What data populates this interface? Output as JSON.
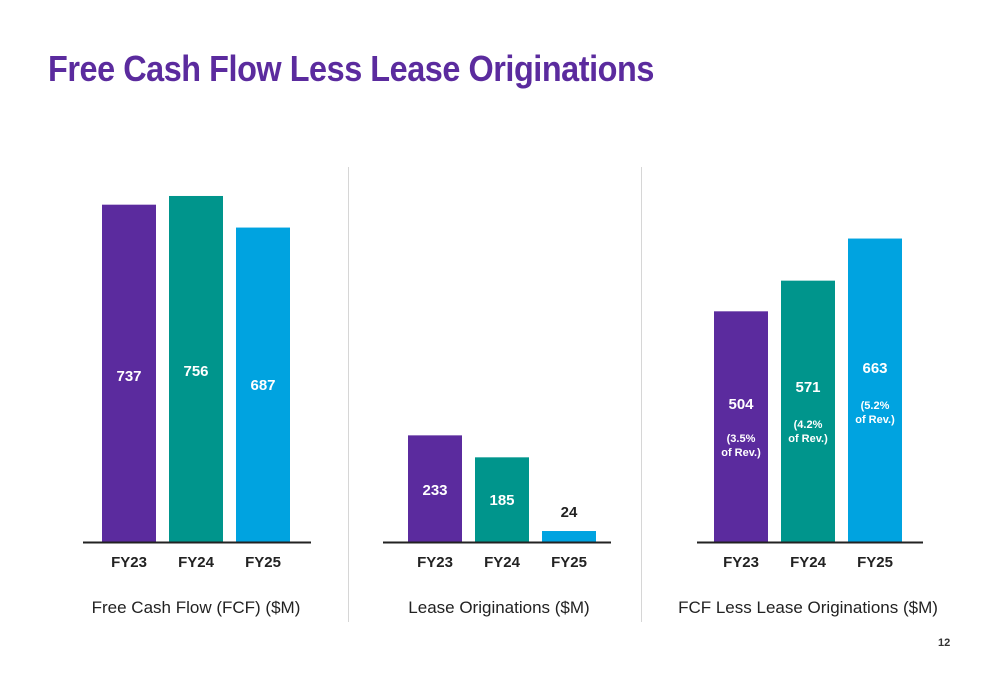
{
  "page": {
    "title": "Free Cash Flow Less Lease Originations",
    "page_number": "12"
  },
  "colors": {
    "title": "#5b2b9e",
    "FY23": "#5b2b9e",
    "FY24": "#00958c",
    "FY25": "#00a3e0"
  },
  "chart_data": [
    {
      "type": "bar",
      "caption": "Free Cash Flow (FCF) ($M)",
      "categories": [
        "FY23",
        "FY24",
        "FY25"
      ],
      "values": [
        737,
        756,
        687
      ],
      "value_labels": [
        "737",
        "756",
        "687"
      ],
      "notes": [
        "",
        "",
        ""
      ]
    },
    {
      "type": "bar",
      "caption": "Lease Originations ($M)",
      "categories": [
        "FY23",
        "FY24",
        "FY25"
      ],
      "values": [
        233,
        185,
        24
      ],
      "value_labels": [
        "233",
        "185",
        "24"
      ],
      "notes": [
        "",
        "",
        ""
      ]
    },
    {
      "type": "bar",
      "caption": "FCF Less Lease Originations ($M)",
      "categories": [
        "FY23",
        "FY24",
        "FY25"
      ],
      "values": [
        504,
        571,
        663
      ],
      "value_labels": [
        "504",
        "571",
        "663"
      ],
      "notes": [
        [
          "(3.5%",
          "of Rev.)"
        ],
        [
          "(4.2%",
          "of Rev.)"
        ],
        [
          "(5.2%",
          "of Rev.)"
        ]
      ]
    }
  ]
}
